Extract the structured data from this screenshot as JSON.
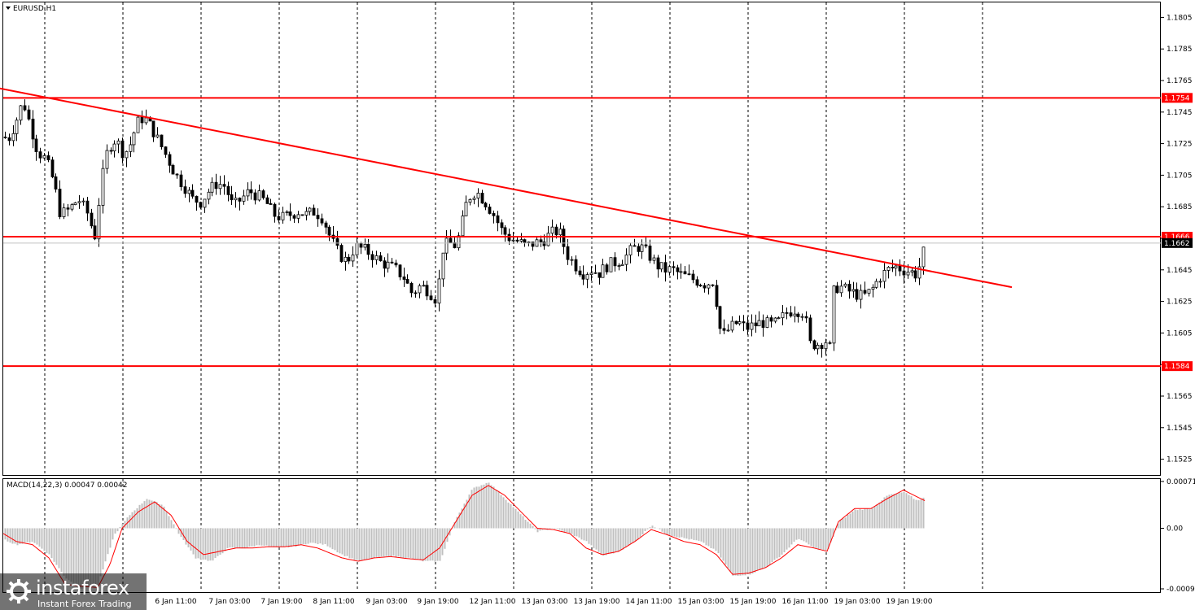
{
  "chart_data": [
    {
      "type": "candlestick",
      "symbol": "EURUSD,H1",
      "ylim": [
        1.1515,
        1.1815
      ],
      "ticks": [
        "1.1805",
        "1.1785",
        "1.1765",
        "1.1745",
        "1.1725",
        "1.1705",
        "1.1685",
        "1.1665",
        "1.1645",
        "1.1625",
        "1.1605",
        "1.1585",
        "1.1565",
        "1.1545",
        "1.1525"
      ],
      "x_labels": [
        "6 Jan 11:00",
        "7 Jan 03:00",
        "7 Jan 19:00",
        "8 Jan 11:00",
        "9 Jan 03:00",
        "9 Jan 19:00",
        "12 Jan 11:00",
        "13 Jan 03:00",
        "13 Jan 19:00",
        "14 Jan 11:00",
        "15 Jan 03:00",
        "15 Jan 19:00",
        "16 Jan 11:00",
        "19 Jan 03:00",
        "19 Jan 19:00"
      ],
      "price_path": [
        [
          0,
          1.173
        ],
        [
          10,
          1.1728
        ],
        [
          20,
          1.174
        ],
        [
          28,
          1.1752
        ],
        [
          36,
          1.1738
        ],
        [
          46,
          1.172
        ],
        [
          56,
          1.1715
        ],
        [
          66,
          1.17
        ],
        [
          74,
          1.168
        ],
        [
          84,
          1.1683
        ],
        [
          96,
          1.169
        ],
        [
          108,
          1.168
        ],
        [
          116,
          1.1665
        ],
        [
          124,
          1.17
        ],
        [
          132,
          1.1722
        ],
        [
          142,
          1.1728
        ],
        [
          152,
          1.1718
        ],
        [
          160,
          1.1725
        ],
        [
          168,
          1.1738
        ],
        [
          176,
          1.1742
        ],
        [
          186,
          1.1735
        ],
        [
          196,
          1.1725
        ],
        [
          206,
          1.1715
        ],
        [
          216,
          1.1705
        ],
        [
          226,
          1.1698
        ],
        [
          236,
          1.169
        ],
        [
          246,
          1.1688
        ],
        [
          256,
          1.1695
        ],
        [
          266,
          1.17
        ],
        [
          276,
          1.1698
        ],
        [
          286,
          1.1685
        ],
        [
          296,
          1.169
        ],
        [
          306,
          1.1695
        ],
        [
          316,
          1.1692
        ],
        [
          326,
          1.1688
        ],
        [
          336,
          1.168
        ],
        [
          346,
          1.1678
        ],
        [
          356,
          1.168
        ],
        [
          366,
          1.1682
        ],
        [
          376,
          1.168
        ],
        [
          386,
          1.1682
        ],
        [
          396,
          1.1678
        ],
        [
          406,
          1.1665
        ],
        [
          416,
          1.1655
        ],
        [
          426,
          1.165
        ],
        [
          436,
          1.166
        ],
        [
          446,
          1.1658
        ],
        [
          456,
          1.1655
        ],
        [
          466,
          1.165
        ],
        [
          476,
          1.1648
        ],
        [
          486,
          1.1645
        ],
        [
          496,
          1.164
        ],
        [
          506,
          1.163
        ],
        [
          516,
          1.1635
        ],
        [
          526,
          1.1632
        ],
        [
          536,
          1.1626
        ],
        [
          544,
          1.166
        ],
        [
          552,
          1.1662
        ],
        [
          560,
          1.166
        ],
        [
          566,
          1.1672
        ],
        [
          574,
          1.169
        ],
        [
          584,
          1.1695
        ],
        [
          596,
          1.1688
        ],
        [
          606,
          1.168
        ],
        [
          616,
          1.167
        ],
        [
          626,
          1.1665
        ],
        [
          636,
          1.1663
        ],
        [
          646,
          1.166
        ],
        [
          656,
          1.1662
        ],
        [
          666,
          1.1663
        ],
        [
          676,
          1.1668
        ],
        [
          686,
          1.167
        ],
        [
          696,
          1.1655
        ],
        [
          706,
          1.1648
        ],
        [
          716,
          1.1643
        ],
        [
          726,
          1.1645
        ],
        [
          736,
          1.1643
        ],
        [
          746,
          1.1648
        ],
        [
          756,
          1.165
        ],
        [
          766,
          1.1652
        ],
        [
          776,
          1.1658
        ],
        [
          786,
          1.166
        ],
        [
          796,
          1.1655
        ],
        [
          806,
          1.1648
        ],
        [
          816,
          1.1645
        ],
        [
          826,
          1.1645
        ],
        [
          836,
          1.1642
        ],
        [
          846,
          1.164
        ],
        [
          856,
          1.1638
        ],
        [
          866,
          1.1636
        ],
        [
          876,
          1.1638
        ],
        [
          886,
          1.1602
        ],
        [
          896,
          1.1608
        ],
        [
          906,
          1.1612
        ],
        [
          916,
          1.1608
        ],
        [
          926,
          1.161
        ],
        [
          936,
          1.1612
        ],
        [
          946,
          1.161
        ],
        [
          956,
          1.1612
        ],
        [
          966,
          1.1618
        ],
        [
          976,
          1.162
        ],
        [
          988,
          1.1618
        ],
        [
          994,
          1.1598
        ],
        [
          1004,
          1.1598
        ],
        [
          1014,
          1.16
        ],
        [
          1018,
          1.1587
        ],
        [
          1022,
          1.163
        ],
        [
          1030,
          1.1635
        ],
        [
          1040,
          1.1632
        ],
        [
          1050,
          1.163
        ],
        [
          1060,
          1.1628
        ],
        [
          1070,
          1.1632
        ],
        [
          1080,
          1.164
        ],
        [
          1090,
          1.1645
        ],
        [
          1100,
          1.1647
        ],
        [
          1110,
          1.1645
        ],
        [
          1118,
          1.1644
        ],
        [
          1124,
          1.1642
        ],
        [
          1130,
          1.1648
        ],
        [
          1136,
          1.166
        ]
      ],
      "hlines": [
        {
          "price": 1.1754,
          "label": "1.1754",
          "color": "#ff0000"
        },
        {
          "price": 1.1666,
          "label": "1.1666",
          "color": "#ff0000"
        },
        {
          "price": 1.1584,
          "label": "1.1584",
          "color": "#ff0000"
        }
      ],
      "current_price": {
        "price": 1.1662,
        "label": "1.1662",
        "color": "#c0c0c0"
      },
      "trendline": {
        "from": [
          0,
          1.176
        ],
        "to": [
          1243,
          1.1634
        ],
        "color": "#ff0000"
      },
      "bull_color": "#ffffff",
      "bear_color": "#000000"
    },
    {
      "type": "histogram",
      "label": "MACD(14,22,3) 0.00047 0.00042",
      "ylim": [
        -0.00092,
        0.00071
      ],
      "ticks": [
        "0.00071",
        "0.00",
        "-0.00092"
      ],
      "hist_path": [
        [
          0,
          -0.00015
        ],
        [
          20,
          -0.00025
        ],
        [
          40,
          -0.0002
        ],
        [
          60,
          -0.0004
        ],
        [
          80,
          -0.00075
        ],
        [
          100,
          -0.00092
        ],
        [
          120,
          -0.00085
        ],
        [
          140,
          -0.0001
        ],
        [
          160,
          0.00022
        ],
        [
          180,
          0.00045
        ],
        [
          200,
          0.00035
        ],
        [
          220,
          -0.0001
        ],
        [
          240,
          -0.00045
        ],
        [
          260,
          -0.0005
        ],
        [
          280,
          -0.0003
        ],
        [
          300,
          -0.0003
        ],
        [
          320,
          -0.00025
        ],
        [
          340,
          -0.0003
        ],
        [
          360,
          -0.00028
        ],
        [
          380,
          -0.00022
        ],
        [
          400,
          -0.00025
        ],
        [
          420,
          -0.0004
        ],
        [
          440,
          -0.0005
        ],
        [
          460,
          -0.00045
        ],
        [
          480,
          -0.00042
        ],
        [
          500,
          -0.00045
        ],
        [
          520,
          -0.0005
        ],
        [
          540,
          -0.0005
        ],
        [
          560,
          0.00015
        ],
        [
          580,
          0.0006
        ],
        [
          600,
          0.0007
        ],
        [
          620,
          0.00045
        ],
        [
          640,
          0.0002
        ],
        [
          660,
          -5e-05
        ],
        [
          680,
          0.0
        ],
        [
          700,
          -8e-05
        ],
        [
          720,
          -0.0002
        ],
        [
          740,
          -0.00042
        ],
        [
          760,
          -0.00035
        ],
        [
          780,
          -0.0002
        ],
        [
          800,
          5e-05
        ],
        [
          820,
          -0.0001
        ],
        [
          840,
          -0.00015
        ],
        [
          860,
          -0.0002
        ],
        [
          880,
          -0.00035
        ],
        [
          900,
          -0.00072
        ],
        [
          920,
          -0.0007
        ],
        [
          940,
          -0.0006
        ],
        [
          960,
          -0.0004
        ],
        [
          980,
          -0.00015
        ],
        [
          1000,
          -0.0003
        ],
        [
          1016,
          -0.00035
        ],
        [
          1030,
          0.0001
        ],
        [
          1050,
          0.00028
        ],
        [
          1070,
          0.0003
        ],
        [
          1090,
          0.0005
        ],
        [
          1110,
          0.00055
        ],
        [
          1126,
          0.00042
        ],
        [
          1136,
          0.00047
        ]
      ],
      "signal_path": [
        [
          0,
          -5e-05
        ],
        [
          20,
          -0.0002
        ],
        [
          40,
          -0.00025
        ],
        [
          60,
          -0.00045
        ],
        [
          80,
          -0.00085
        ],
        [
          100,
          -0.00088
        ],
        [
          120,
          -0.0009
        ],
        [
          135,
          -0.00055
        ],
        [
          150,
          0.0
        ],
        [
          170,
          0.00025
        ],
        [
          190,
          0.0004
        ],
        [
          210,
          0.0002
        ],
        [
          230,
          -0.0002
        ],
        [
          250,
          -0.0004
        ],
        [
          270,
          -0.00035
        ],
        [
          290,
          -0.0003
        ],
        [
          310,
          -0.0003
        ],
        [
          330,
          -0.00028
        ],
        [
          350,
          -0.00028
        ],
        [
          370,
          -0.00025
        ],
        [
          390,
          -0.0003
        ],
        [
          420,
          -0.00045
        ],
        [
          440,
          -0.0005
        ],
        [
          460,
          -0.00045
        ],
        [
          480,
          -0.00043
        ],
        [
          500,
          -0.00046
        ],
        [
          520,
          -0.00048
        ],
        [
          540,
          -0.0003
        ],
        [
          560,
          0.0001
        ],
        [
          580,
          0.0005
        ],
        [
          600,
          0.00065
        ],
        [
          620,
          0.0005
        ],
        [
          640,
          0.00025
        ],
        [
          660,
          0.0
        ],
        [
          680,
          -2e-05
        ],
        [
          700,
          -8e-05
        ],
        [
          720,
          -0.0003
        ],
        [
          740,
          -0.0004
        ],
        [
          760,
          -0.00035
        ],
        [
          780,
          -0.0002
        ],
        [
          800,
          -2e-05
        ],
        [
          820,
          -0.0001
        ],
        [
          840,
          -0.0002
        ],
        [
          860,
          -0.00025
        ],
        [
          880,
          -0.0004
        ],
        [
          900,
          -0.0007
        ],
        [
          920,
          -0.00068
        ],
        [
          940,
          -0.0006
        ],
        [
          960,
          -0.00045
        ],
        [
          980,
          -0.00025
        ],
        [
          1000,
          -0.0003
        ],
        [
          1016,
          -0.00035
        ],
        [
          1030,
          0.0001
        ],
        [
          1050,
          0.0003
        ],
        [
          1070,
          0.0003
        ],
        [
          1090,
          0.00045
        ],
        [
          1110,
          0.00058
        ],
        [
          1126,
          0.00048
        ],
        [
          1136,
          0.00042
        ]
      ],
      "hist_color": "#c0c0c0",
      "signal_color": "#ff0000"
    }
  ],
  "watermark": {
    "brand": "instaforex",
    "subtitle": "Instant Forex Trading"
  }
}
